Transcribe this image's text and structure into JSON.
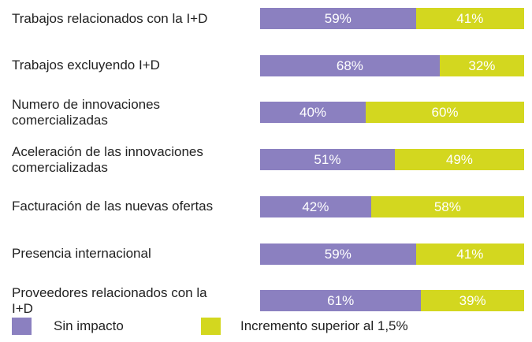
{
  "chart_data": {
    "type": "bar",
    "orientation": "horizontal",
    "stacked": true,
    "categories": [
      "Trabajos relacionados con la I+D",
      "Trabajos excluyendo I+D",
      "Numero de innovaciones comercializadas",
      "Aceleración de las innovaciones comercializadas",
      "Facturación de las nuevas ofertas",
      "Presencia internacional",
      "Proveedores relacionados con la I+D"
    ],
    "series": [
      {
        "name": "Sin impacto",
        "color": "#8b80c0",
        "values": [
          59,
          68,
          40,
          51,
          42,
          59,
          61
        ],
        "value_labels": [
          "59%",
          "68%",
          "40%",
          "51%",
          "42%",
          "59%",
          "61%"
        ]
      },
      {
        "name": "Incremento superior al 1,5%",
        "color": "#d3d71f",
        "values": [
          41,
          32,
          60,
          49,
          58,
          41,
          39
        ],
        "value_labels": [
          "41%",
          "32%",
          "60%",
          "49%",
          "58%",
          "41%",
          "39%"
        ]
      }
    ],
    "legend": "bottom"
  }
}
